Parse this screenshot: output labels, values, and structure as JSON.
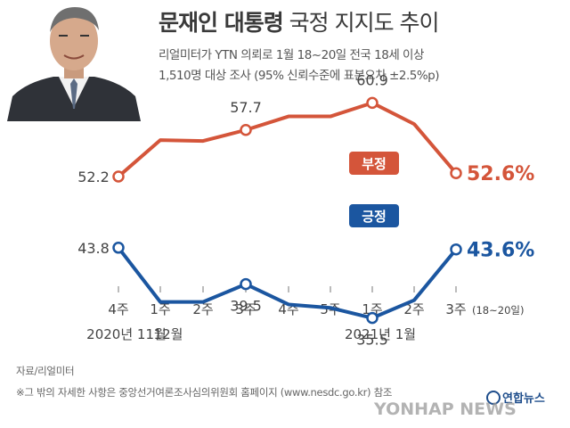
{
  "header": {
    "title_main": "문재인 대통령",
    "title_sub": " 국정 지지도 추이",
    "note_line1": "리얼미터가 YTN 의뢰로 1월 18~20일 전국 18세 이상",
    "note_line2": "1,510명 대상 조사 (95% 신뢰수준에 표본오차 ±2.5%p)"
  },
  "colors": {
    "negative": "#d4553a",
    "positive": "#1b56a0",
    "axis": "#777777",
    "text": "#444444"
  },
  "chart_data": {
    "type": "line",
    "categories": [
      "4주",
      "1주",
      "2주",
      "3주",
      "4주",
      "5주",
      "1주",
      "2주",
      "3주"
    ],
    "last_category_note": "(18~20일)",
    "period_labels": [
      {
        "label": "2020년 11월",
        "under_index": 0
      },
      {
        "label": "12월",
        "under_index": 1
      },
      {
        "label": "2021년 1월",
        "under_index": 6
      }
    ],
    "series": [
      {
        "name": "부정",
        "color": "#d4553a",
        "values": [
          52.2,
          56.5,
          56.4,
          57.7,
          59.3,
          59.3,
          60.9,
          58.4,
          52.6
        ],
        "labeled_points": [
          0,
          3,
          6,
          8
        ],
        "value_labels": [
          "52.2",
          "57.7",
          "60.9",
          "52.6%"
        ]
      },
      {
        "name": "긍정",
        "color": "#1b56a0",
        "values": [
          43.8,
          37.4,
          37.4,
          39.5,
          37.1,
          36.7,
          35.5,
          37.6,
          43.6
        ],
        "labeled_points": [
          0,
          3,
          6,
          8
        ],
        "value_labels": [
          "43.8",
          "39.5",
          "35.5",
          "43.6%"
        ]
      }
    ],
    "ylim": [
      30,
      66
    ],
    "grid": false
  },
  "footer": {
    "source": "자료/리얼미터",
    "note": "※그 밖의 자세한 사항은 중앙선거여론조사심의위원회 홈페이지 (www.nesdc.go.kr) 참조"
  },
  "branding": {
    "logo_text": "연합뉴스",
    "watermark": "YONHAP NEWS"
  }
}
